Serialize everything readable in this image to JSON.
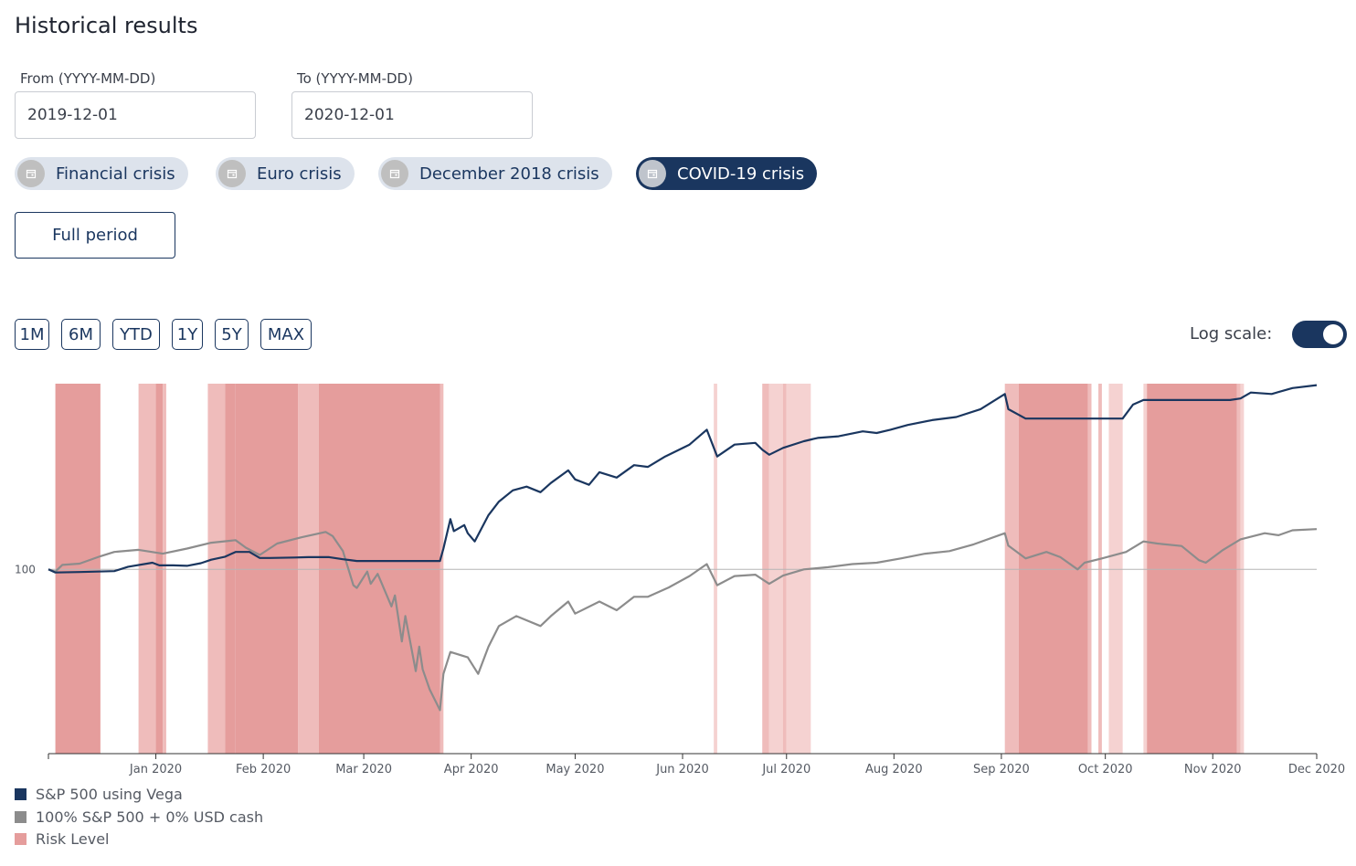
{
  "header": {
    "title": "Historical results"
  },
  "filters": {
    "from_label": "From (YYYY-MM-DD)",
    "from_value": "2019-12-01",
    "to_label": "To (YYYY-MM-DD)",
    "to_value": "2020-12-01"
  },
  "crises": [
    {
      "label": "Financial crisis",
      "active": false
    },
    {
      "label": "Euro crisis",
      "active": false
    },
    {
      "label": "December 2018 crisis",
      "active": false
    },
    {
      "label": "COVID-19 crisis",
      "active": true
    }
  ],
  "full_period_label": "Full period",
  "ranges": [
    "1M",
    "6M",
    "YTD",
    "1Y",
    "5Y",
    "MAX"
  ],
  "log_scale": {
    "label": "Log scale:",
    "on": true
  },
  "colors": {
    "vega": "#1a365f",
    "sp500": "#8c8c8c",
    "risk_strong": "#e59d9c",
    "risk_light": "#f5d2d1"
  },
  "chart_data": {
    "type": "line",
    "x_start": "2019-12-01",
    "x_end": "2020-12-01",
    "x_ticks": [
      "Jan 2020",
      "Feb 2020",
      "Mar 2020",
      "Apr 2020",
      "May 2020",
      "Jun 2020",
      "Jul 2020",
      "Aug 2020",
      "Sep 2020",
      "Oct 2020",
      "Nov 2020",
      "Dec 2020"
    ],
    "y_reference": 100,
    "y_reference_label": "100",
    "y_scale": "log",
    "ylim": [
      66,
      152
    ],
    "grid": false,
    "legend_position": "bottom-left",
    "series": [
      {
        "name": "S&P 500 using Vega",
        "color": "#1a365f",
        "points": [
          [
            "2019-12-01",
            100
          ],
          [
            "2019-12-03",
            99.3
          ],
          [
            "2019-12-10",
            99.4
          ],
          [
            "2019-12-20",
            99.6
          ],
          [
            "2019-12-24",
            100.6
          ],
          [
            "2019-12-31",
            101.5
          ],
          [
            "2020-01-02",
            100.9
          ],
          [
            "2020-01-06",
            100.9
          ],
          [
            "2020-01-10",
            100.8
          ],
          [
            "2020-01-14",
            101.4
          ],
          [
            "2020-01-17",
            102.2
          ],
          [
            "2020-01-21",
            102.9
          ],
          [
            "2020-01-24",
            104.0
          ],
          [
            "2020-01-28",
            104.0
          ],
          [
            "2020-01-31",
            102.6
          ],
          [
            "2020-02-03",
            102.6
          ],
          [
            "2020-02-10",
            102.7
          ],
          [
            "2020-02-14",
            102.8
          ],
          [
            "2020-02-20",
            102.8
          ],
          [
            "2020-02-24",
            102.3
          ],
          [
            "2020-02-28",
            101.9
          ],
          [
            "2020-03-05",
            101.9
          ],
          [
            "2020-03-23",
            101.9
          ],
          [
            "2020-03-24",
            104.8
          ],
          [
            "2020-03-26",
            112.0
          ],
          [
            "2020-03-27",
            109.0
          ],
          [
            "2020-03-30",
            110.5
          ],
          [
            "2020-03-31",
            108.5
          ],
          [
            "2020-04-02",
            106.5
          ],
          [
            "2020-04-06",
            113.0
          ],
          [
            "2020-04-09",
            116.5
          ],
          [
            "2020-04-13",
            119.5
          ],
          [
            "2020-04-17",
            120.5
          ],
          [
            "2020-04-21",
            119.0
          ],
          [
            "2020-04-24",
            121.5
          ],
          [
            "2020-04-29",
            125.0
          ],
          [
            "2020-05-01",
            122.5
          ],
          [
            "2020-05-05",
            121.0
          ],
          [
            "2020-05-08",
            124.5
          ],
          [
            "2020-05-13",
            123.0
          ],
          [
            "2020-05-18",
            126.5
          ],
          [
            "2020-05-22",
            126.0
          ],
          [
            "2020-05-27",
            129.0
          ],
          [
            "2020-06-03",
            132.5
          ],
          [
            "2020-06-08",
            137.0
          ],
          [
            "2020-06-11",
            129.0
          ],
          [
            "2020-06-16",
            132.5
          ],
          [
            "2020-06-22",
            133.0
          ],
          [
            "2020-06-24",
            131.0
          ],
          [
            "2020-06-26",
            129.5
          ],
          [
            "2020-06-30",
            131.5
          ],
          [
            "2020-07-06",
            133.5
          ],
          [
            "2020-07-10",
            134.5
          ],
          [
            "2020-07-16",
            135.0
          ],
          [
            "2020-07-23",
            136.5
          ],
          [
            "2020-07-27",
            136.0
          ],
          [
            "2020-07-31",
            137.0
          ],
          [
            "2020-08-05",
            138.5
          ],
          [
            "2020-08-12",
            140.0
          ],
          [
            "2020-08-19",
            141.0
          ],
          [
            "2020-08-26",
            143.5
          ],
          [
            "2020-09-02",
            148.5
          ],
          [
            "2020-09-03",
            143.5
          ],
          [
            "2020-09-08",
            140.5
          ],
          [
            "2020-09-15",
            140.5
          ],
          [
            "2020-09-22",
            140.5
          ],
          [
            "2020-09-29",
            140.5
          ],
          [
            "2020-10-02",
            140.5
          ],
          [
            "2020-10-06",
            140.5
          ],
          [
            "2020-10-09",
            145.0
          ],
          [
            "2020-10-12",
            146.5
          ],
          [
            "2020-10-20",
            146.5
          ],
          [
            "2020-10-30",
            146.5
          ],
          [
            "2020-11-06",
            146.5
          ],
          [
            "2020-11-09",
            147.0
          ],
          [
            "2020-11-12",
            149.0
          ],
          [
            "2020-11-18",
            148.5
          ],
          [
            "2020-11-24",
            150.5
          ],
          [
            "2020-12-01",
            151.5
          ]
        ]
      },
      {
        "name": "100% S&P 500 + 0% USD cash",
        "color": "#8c8c8c",
        "points": [
          [
            "2019-12-01",
            100
          ],
          [
            "2019-12-03",
            99.5
          ],
          [
            "2019-12-05",
            101.0
          ],
          [
            "2019-12-10",
            101.3
          ],
          [
            "2019-12-16",
            103.0
          ],
          [
            "2019-12-20",
            104.0
          ],
          [
            "2019-12-27",
            104.5
          ],
          [
            "2020-01-03",
            103.6
          ],
          [
            "2020-01-10",
            104.8
          ],
          [
            "2020-01-17",
            106.2
          ],
          [
            "2020-01-24",
            106.8
          ],
          [
            "2020-01-27",
            105.0
          ],
          [
            "2020-01-31",
            103.3
          ],
          [
            "2020-02-05",
            106.0
          ],
          [
            "2020-02-12",
            107.5
          ],
          [
            "2020-02-19",
            108.8
          ],
          [
            "2020-02-21",
            107.8
          ],
          [
            "2020-02-24",
            104.2
          ],
          [
            "2020-02-27",
            96.5
          ],
          [
            "2020-02-28",
            95.9
          ],
          [
            "2020-03-02",
            99.5
          ],
          [
            "2020-03-03",
            96.8
          ],
          [
            "2020-03-05",
            99.0
          ],
          [
            "2020-03-06",
            97.2
          ],
          [
            "2020-03-09",
            92.0
          ],
          [
            "2020-03-10",
            94.3
          ],
          [
            "2020-03-12",
            85.0
          ],
          [
            "2020-03-13",
            90.0
          ],
          [
            "2020-03-16",
            79.5
          ],
          [
            "2020-03-17",
            84.0
          ],
          [
            "2020-03-18",
            79.8
          ],
          [
            "2020-03-20",
            76.3
          ],
          [
            "2020-03-23",
            72.8
          ],
          [
            "2020-03-24",
            79.0
          ],
          [
            "2020-03-26",
            83.0
          ],
          [
            "2020-03-31",
            82.0
          ],
          [
            "2020-04-03",
            79.0
          ],
          [
            "2020-04-06",
            84.0
          ],
          [
            "2020-04-09",
            88.0
          ],
          [
            "2020-04-14",
            90.0
          ],
          [
            "2020-04-21",
            88.0
          ],
          [
            "2020-04-24",
            90.0
          ],
          [
            "2020-04-29",
            93.0
          ],
          [
            "2020-05-01",
            90.5
          ],
          [
            "2020-05-08",
            93.0
          ],
          [
            "2020-05-13",
            91.2
          ],
          [
            "2020-05-18",
            94.0
          ],
          [
            "2020-05-22",
            94.0
          ],
          [
            "2020-05-28",
            96.0
          ],
          [
            "2020-06-03",
            98.5
          ],
          [
            "2020-06-08",
            101.2
          ],
          [
            "2020-06-11",
            96.5
          ],
          [
            "2020-06-16",
            98.5
          ],
          [
            "2020-06-22",
            98.8
          ],
          [
            "2020-06-26",
            96.8
          ],
          [
            "2020-06-30",
            98.6
          ],
          [
            "2020-07-06",
            100.0
          ],
          [
            "2020-07-13",
            100.5
          ],
          [
            "2020-07-20",
            101.2
          ],
          [
            "2020-07-27",
            101.5
          ],
          [
            "2020-08-03",
            102.5
          ],
          [
            "2020-08-10",
            103.6
          ],
          [
            "2020-08-17",
            104.2
          ],
          [
            "2020-08-24",
            105.8
          ],
          [
            "2020-09-02",
            108.5
          ],
          [
            "2020-09-03",
            105.5
          ],
          [
            "2020-09-08",
            102.5
          ],
          [
            "2020-09-14",
            104.0
          ],
          [
            "2020-09-18",
            102.8
          ],
          [
            "2020-09-23",
            100.0
          ],
          [
            "2020-09-25",
            101.5
          ],
          [
            "2020-09-30",
            102.5
          ],
          [
            "2020-10-07",
            104.0
          ],
          [
            "2020-10-12",
            106.5
          ],
          [
            "2020-10-16",
            106.0
          ],
          [
            "2020-10-23",
            105.4
          ],
          [
            "2020-10-28",
            102.1
          ],
          [
            "2020-10-30",
            101.5
          ],
          [
            "2020-11-04",
            104.5
          ],
          [
            "2020-11-09",
            107.0
          ],
          [
            "2020-11-16",
            108.5
          ],
          [
            "2020-11-20",
            108.0
          ],
          [
            "2020-11-24",
            109.2
          ],
          [
            "2020-12-01",
            109.5
          ]
        ]
      }
    ],
    "risk_bands": [
      {
        "start": "2019-12-03",
        "end": "2019-12-16",
        "level": "high"
      },
      {
        "start": "2019-12-27",
        "end": "2020-01-01",
        "level": "medium"
      },
      {
        "start": "2020-01-01",
        "end": "2020-01-03",
        "level": "high"
      },
      {
        "start": "2020-01-03",
        "end": "2020-01-04",
        "level": "medium"
      },
      {
        "start": "2020-01-16",
        "end": "2020-01-21",
        "level": "medium"
      },
      {
        "start": "2020-01-21",
        "end": "2020-01-24",
        "level": "high"
      },
      {
        "start": "2020-01-24",
        "end": "2020-02-11",
        "level": "high"
      },
      {
        "start": "2020-02-11",
        "end": "2020-02-17",
        "level": "medium"
      },
      {
        "start": "2020-02-17",
        "end": "2020-03-23",
        "level": "high"
      },
      {
        "start": "2020-03-23",
        "end": "2020-03-24",
        "level": "medium"
      },
      {
        "start": "2020-06-10",
        "end": "2020-06-11",
        "level": "low"
      },
      {
        "start": "2020-06-24",
        "end": "2020-06-26",
        "level": "medium"
      },
      {
        "start": "2020-06-26",
        "end": "2020-06-30",
        "level": "low"
      },
      {
        "start": "2020-06-30",
        "end": "2020-07-01",
        "level": "medium"
      },
      {
        "start": "2020-07-01",
        "end": "2020-07-08",
        "level": "low"
      },
      {
        "start": "2020-09-02",
        "end": "2020-09-06",
        "level": "medium"
      },
      {
        "start": "2020-09-06",
        "end": "2020-09-26",
        "level": "high"
      },
      {
        "start": "2020-09-26",
        "end": "2020-09-27",
        "level": "medium"
      },
      {
        "start": "2020-09-29",
        "end": "2020-09-30",
        "level": "medium"
      },
      {
        "start": "2020-10-02",
        "end": "2020-10-06",
        "level": "low"
      },
      {
        "start": "2020-10-12",
        "end": "2020-10-13",
        "level": "low"
      },
      {
        "start": "2020-10-13",
        "end": "2020-11-08",
        "level": "high"
      },
      {
        "start": "2020-11-08",
        "end": "2020-11-09",
        "level": "medium"
      },
      {
        "start": "2020-11-09",
        "end": "2020-11-10",
        "level": "low"
      }
    ],
    "legend": [
      {
        "label": "S&P 500 using Vega",
        "color": "#1a365f"
      },
      {
        "label": "100% S&P 500 + 0% USD cash",
        "color": "#8c8c8c"
      },
      {
        "label": "Risk Level",
        "color": "#e59d9c"
      }
    ]
  }
}
